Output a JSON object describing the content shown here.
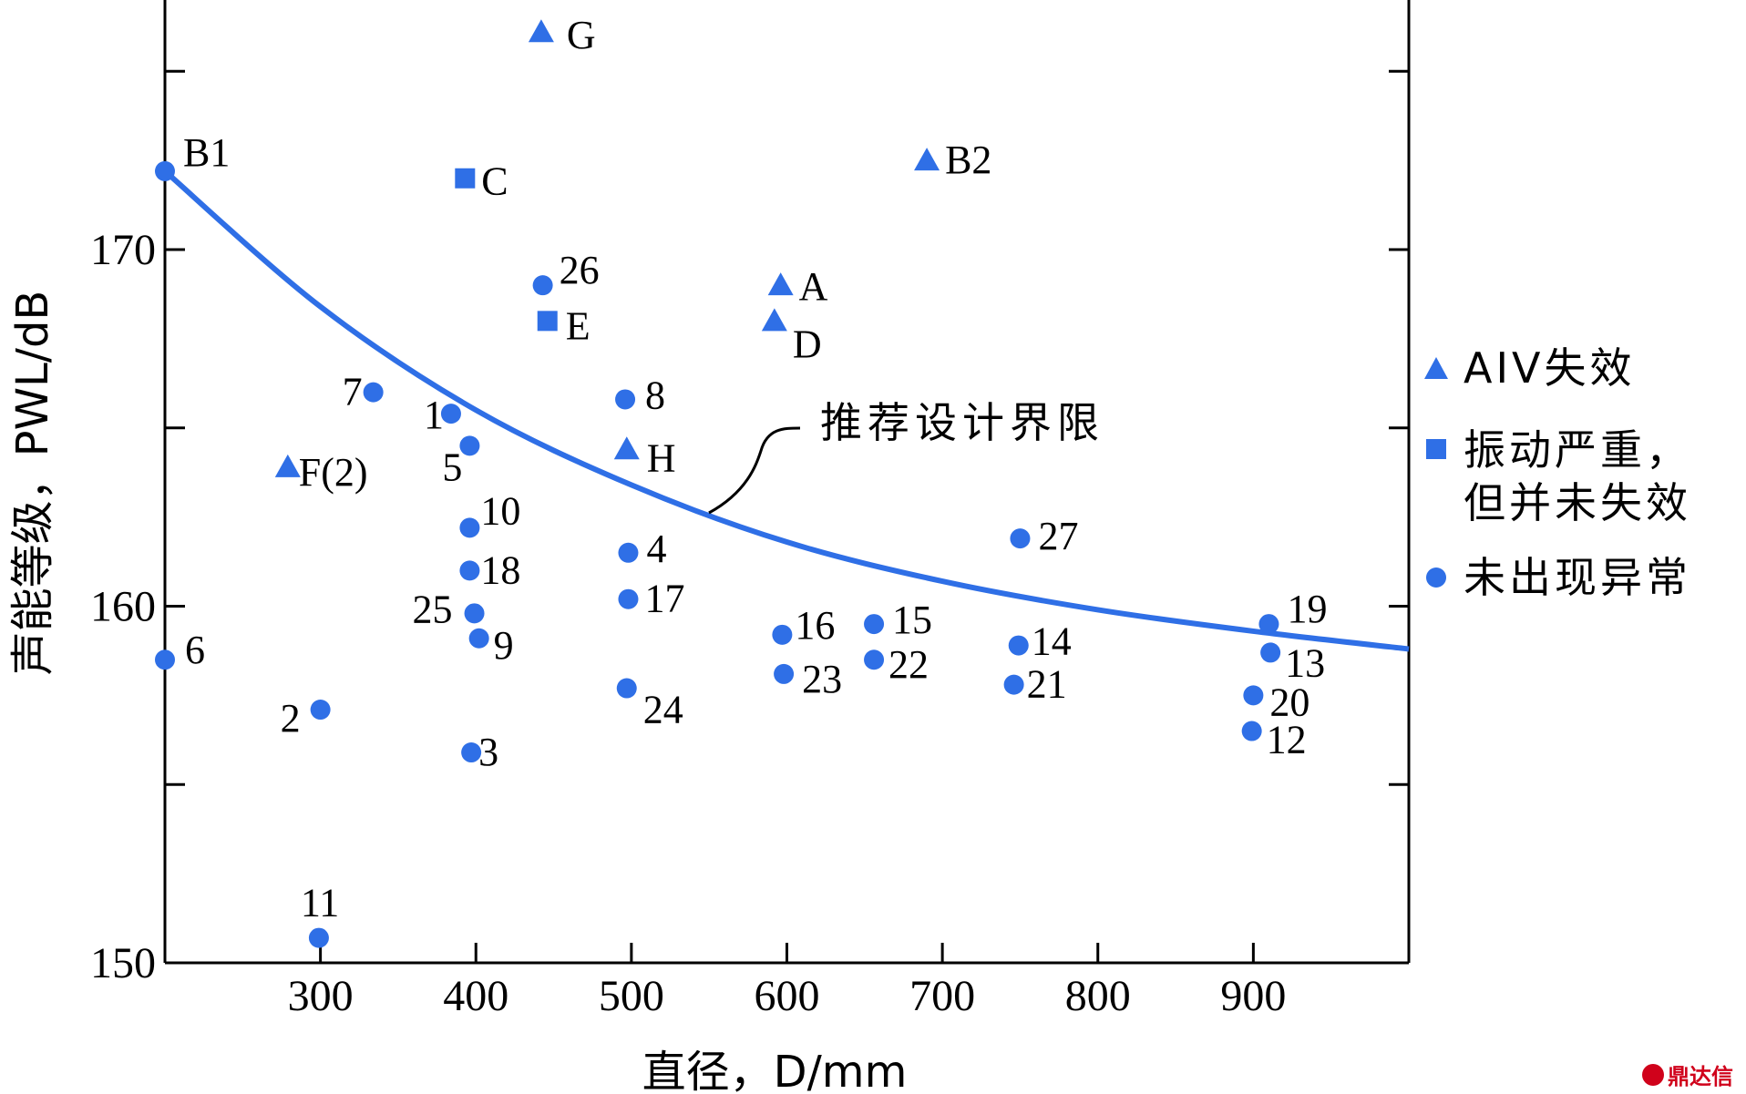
{
  "chart_data": {
    "type": "scatter",
    "xlabel": "直径，D/mm",
    "ylabel": "声能等级，PWL/dB",
    "xlim": [
      200,
      1000
    ],
    "ylim": [
      150,
      177
    ],
    "x_ticks": [
      300,
      400,
      500,
      600,
      700,
      800,
      900
    ],
    "y_ticks": [
      150,
      160,
      170
    ],
    "grid": false,
    "legend_position": "right",
    "legend": [
      {
        "marker": "triangle",
        "label": "AIV失效"
      },
      {
        "marker": "square",
        "label": "振动严重，但并未失效"
      },
      {
        "marker": "circle",
        "label": "未出现异常"
      }
    ],
    "series": [
      {
        "marker": "triangle",
        "points": [
          {
            "label": "G",
            "x": 442,
            "y": 176.1
          },
          {
            "label": "B2",
            "x": 690,
            "y": 172.5
          },
          {
            "label": "A",
            "x": 596,
            "y": 169.0
          },
          {
            "label": "D",
            "x": 592,
            "y": 168.0
          },
          {
            "label": "H",
            "x": 497,
            "y": 164.4
          },
          {
            "label": "F(2)",
            "x": 279,
            "y": 163.9
          }
        ]
      },
      {
        "marker": "square",
        "points": [
          {
            "label": "C",
            "x": 393,
            "y": 172.0
          },
          {
            "label": "E",
            "x": 446,
            "y": 168.0
          }
        ]
      },
      {
        "marker": "circle",
        "points": [
          {
            "label": "B1",
            "x": 200,
            "y": 172.2
          },
          {
            "label": "26",
            "x": 443,
            "y": 169.0
          },
          {
            "label": "7",
            "x": 334,
            "y": 166.0
          },
          {
            "label": "8",
            "x": 496,
            "y": 165.8
          },
          {
            "label": "1",
            "x": 384,
            "y": 165.4
          },
          {
            "label": "5",
            "x": 396,
            "y": 164.5
          },
          {
            "label": "10",
            "x": 396,
            "y": 162.2
          },
          {
            "label": "27",
            "x": 750,
            "y": 161.9
          },
          {
            "label": "4",
            "x": 498,
            "y": 161.5
          },
          {
            "label": "18",
            "x": 396,
            "y": 161.0
          },
          {
            "label": "17",
            "x": 498,
            "y": 160.2
          },
          {
            "label": "25",
            "x": 399,
            "y": 159.8
          },
          {
            "label": "19",
            "x": 910,
            "y": 159.5
          },
          {
            "label": "15",
            "x": 656,
            "y": 159.5
          },
          {
            "label": "16",
            "x": 597,
            "y": 159.2
          },
          {
            "label": "9",
            "x": 402,
            "y": 159.1
          },
          {
            "label": "14",
            "x": 749,
            "y": 158.9
          },
          {
            "label": "13",
            "x": 911,
            "y": 158.7
          },
          {
            "label": "6",
            "x": 200,
            "y": 158.5
          },
          {
            "label": "22",
            "x": 656,
            "y": 158.5
          },
          {
            "label": "23",
            "x": 598,
            "y": 158.1
          },
          {
            "label": "21",
            "x": 746,
            "y": 157.8
          },
          {
            "label": "24",
            "x": 497,
            "y": 157.7
          },
          {
            "label": "20",
            "x": 900,
            "y": 157.5
          },
          {
            "label": "2",
            "x": 300,
            "y": 157.1
          },
          {
            "label": "12",
            "x": 899,
            "y": 156.5
          },
          {
            "label": "3",
            "x": 397,
            "y": 155.9
          },
          {
            "label": "11",
            "x": 299,
            "y": 150.7
          }
        ]
      }
    ],
    "curve": {
      "label": "推荐设计界限",
      "points": [
        {
          "x": 200,
          "y": 172.2
        },
        {
          "x": 300,
          "y": 168.4
        },
        {
          "x": 400,
          "y": 165.5
        },
        {
          "x": 500,
          "y": 163.4
        },
        {
          "x": 600,
          "y": 161.8
        },
        {
          "x": 700,
          "y": 160.7
        },
        {
          "x": 800,
          "y": 159.9
        },
        {
          "x": 900,
          "y": 159.3
        },
        {
          "x": 1000,
          "y": 158.8
        }
      ]
    }
  },
  "watermark": "鼎达信"
}
